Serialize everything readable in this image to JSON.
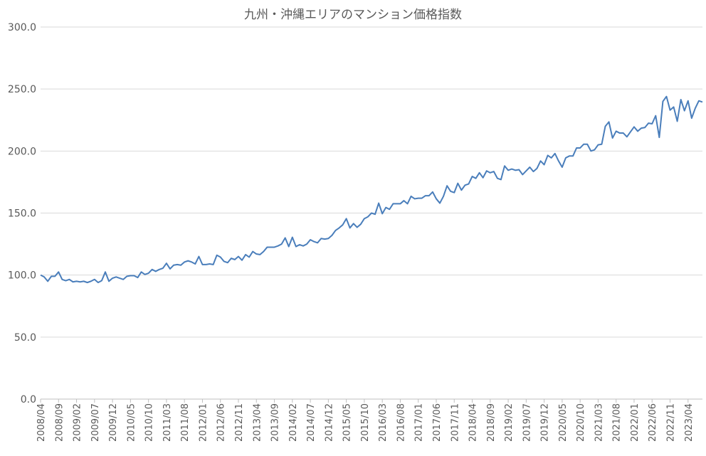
{
  "chart_data": {
    "type": "line",
    "title": "九州・沖縄エリアのマンション価格指数",
    "xlabel": "",
    "ylabel": "",
    "ylim": [
      0,
      300
    ],
    "yticks": [
      "0.0",
      "50.0",
      "100.0",
      "150.0",
      "200.0",
      "250.0",
      "300.0"
    ],
    "grid": true,
    "legend": "none",
    "line_color": "#4a7ebb",
    "x_tick_labels": [
      "2008/04",
      "2008/09",
      "2009/02",
      "2009/07",
      "2009/12",
      "2010/05",
      "2010/10",
      "2011/03",
      "2011/08",
      "2012/01",
      "2012/06",
      "2012/11",
      "2013/04",
      "2013/09",
      "2014/02",
      "2014/07",
      "2014/12",
      "2015/05",
      "2015/10",
      "2016/03",
      "2016/08",
      "2017/01",
      "2017/06",
      "2017/11",
      "2018/04",
      "2018/09",
      "2019/02",
      "2019/07",
      "2019/12",
      "2020/05",
      "2020/10",
      "2021/03",
      "2021/08",
      "2022/01",
      "2022/06",
      "2022/11",
      "2023/04"
    ],
    "x_start": "2008/04",
    "series": [
      {
        "values": [
          100.0,
          98.5,
          95.0,
          99.0,
          99.0,
          102.5,
          96.5,
          95.5,
          96.5,
          94.5,
          95.0,
          94.5,
          95.0,
          94.0,
          95.0,
          96.5,
          94.0,
          95.5,
          102.5,
          95.0,
          97.5,
          98.5,
          97.5,
          96.5,
          99.0,
          99.5,
          99.5,
          98.0,
          102.5,
          100.5,
          101.5,
          104.5,
          103.0,
          104.5,
          105.5,
          109.5,
          105.0,
          108.0,
          108.5,
          108.0,
          110.5,
          111.5,
          110.5,
          109.0,
          115.0,
          108.5,
          108.5,
          109.0,
          108.5,
          116.0,
          114.5,
          111.0,
          110.0,
          113.5,
          112.5,
          115.0,
          112.0,
          116.5,
          114.5,
          119.0,
          117.0,
          116.5,
          119.0,
          122.5,
          122.5,
          122.5,
          123.5,
          125.0,
          130.0,
          123.0,
          130.5,
          123.0,
          124.5,
          123.5,
          125.0,
          128.5,
          127.0,
          126.0,
          129.5,
          129.0,
          129.5,
          132.0,
          136.0,
          138.0,
          140.5,
          145.5,
          138.0,
          141.5,
          138.5,
          141.0,
          145.5,
          147.0,
          150.0,
          149.0,
          158.0,
          149.5,
          154.5,
          153.0,
          157.5,
          157.5,
          157.5,
          160.0,
          157.5,
          163.5,
          161.5,
          162.0,
          162.0,
          164.0,
          164.0,
          167.0,
          161.5,
          158.0,
          163.5,
          172.0,
          167.5,
          166.5,
          174.0,
          168.5,
          172.5,
          173.5,
          179.5,
          178.0,
          182.5,
          178.5,
          184.0,
          182.5,
          183.5,
          178.0,
          177.0,
          188.0,
          184.5,
          185.5,
          184.5,
          185.0,
          181.0,
          184.0,
          187.0,
          183.5,
          186.0,
          192.0,
          189.0,
          196.5,
          194.5,
          198.0,
          192.0,
          187.0,
          194.5,
          196.0,
          196.0,
          202.5,
          202.5,
          205.5,
          205.5,
          200.0,
          201.0,
          205.0,
          205.5,
          220.0,
          223.5,
          210.5,
          216.0,
          214.5,
          214.5,
          211.5,
          215.5,
          219.5,
          216.0,
          218.5,
          219.0,
          222.5,
          222.0,
          228.5,
          211.0,
          240.0,
          244.0,
          233.0,
          235.5,
          224.0,
          241.5,
          232.5,
          240.5,
          226.5,
          234.5,
          240.5,
          239.5
        ]
      }
    ]
  }
}
